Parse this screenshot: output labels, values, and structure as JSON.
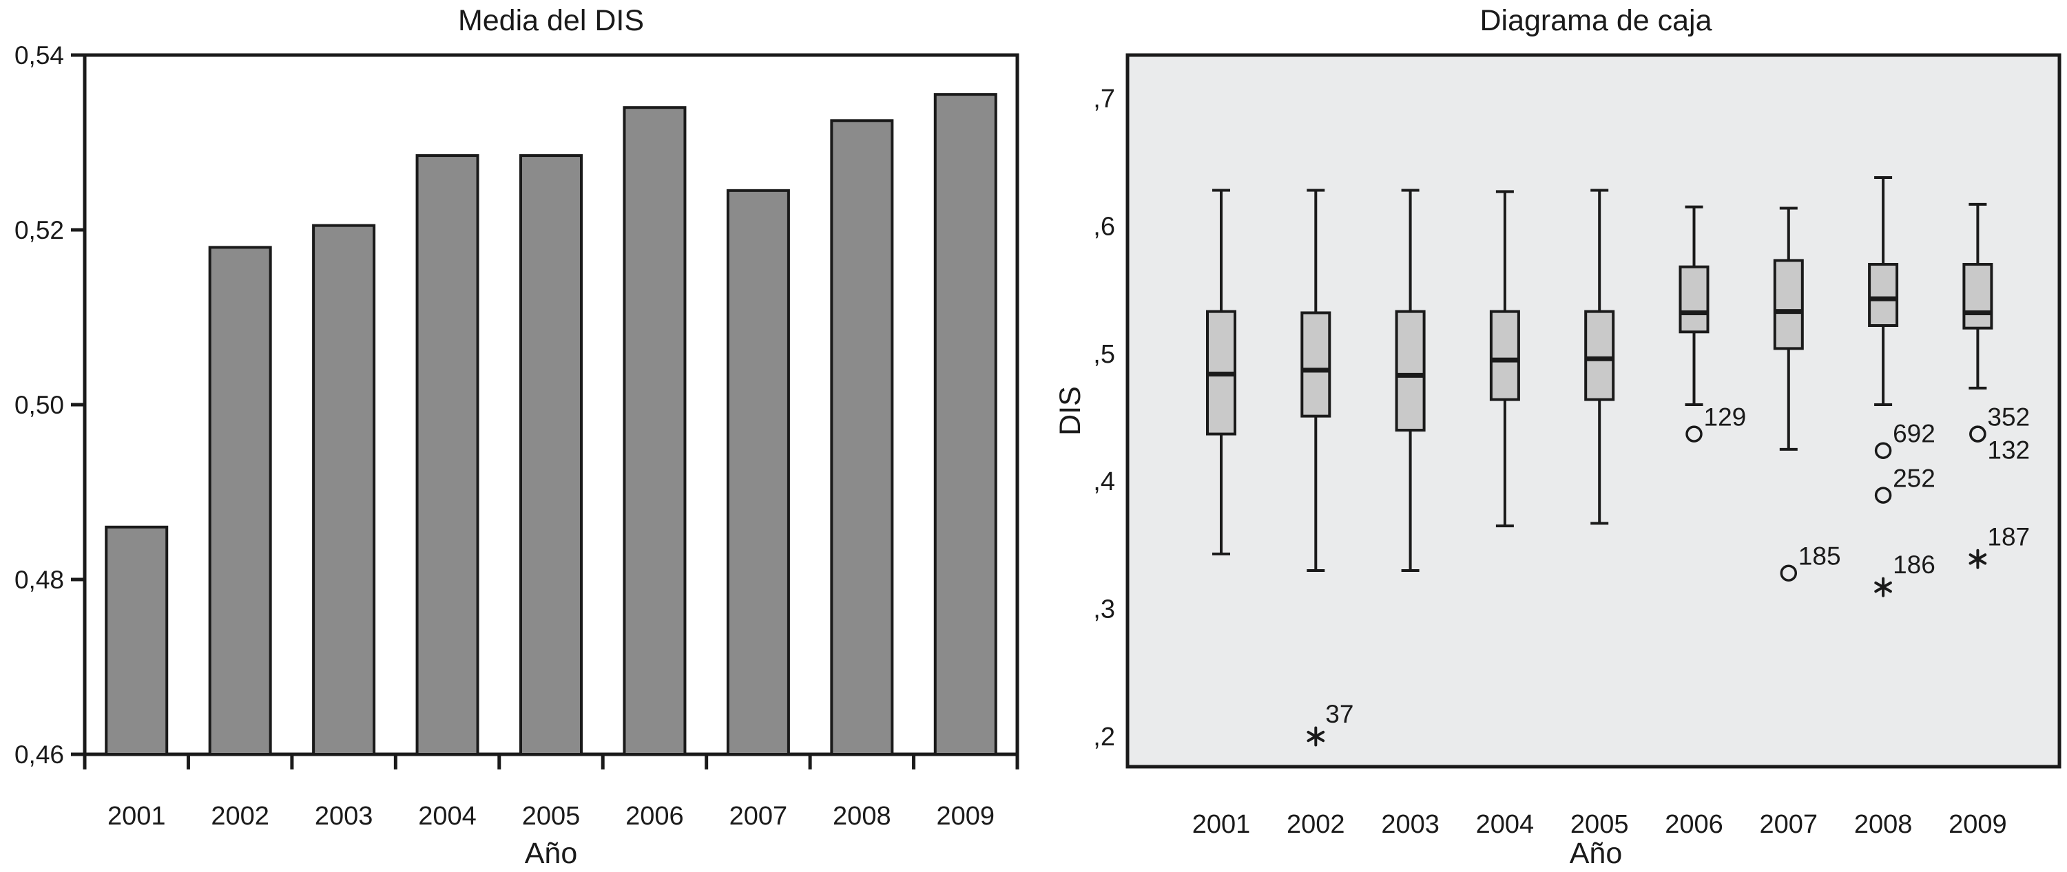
{
  "figure": {
    "background": "#ffffff",
    "ink_color": "#1a1a1a"
  },
  "chart_data": [
    {
      "type": "bar",
      "title": "Media del DIS",
      "xlabel": "Año",
      "ylabel": "",
      "categories": [
        "2001",
        "2002",
        "2003",
        "2004",
        "2005",
        "2006",
        "2007",
        "2008",
        "2009"
      ],
      "values": [
        0.486,
        0.518,
        0.5205,
        0.5285,
        0.5285,
        0.534,
        0.5245,
        0.5325,
        0.5355
      ],
      "ylim": [
        0.46,
        0.54
      ],
      "y_ticks": [
        0.54,
        0.52,
        0.5,
        0.48,
        0.46
      ],
      "y_tick_labels": [
        "0,54",
        "0,52",
        "0,50",
        "0,48",
        "0,46"
      ],
      "grid": false,
      "legend": null,
      "bar_color": "#8b8b8b",
      "bar_edge_color": "#1a1a1a",
      "plot_bg": "#ffffff"
    },
    {
      "type": "boxplot",
      "title": "Diagrama de caja",
      "xlabel": "Año",
      "ylabel": "DIS",
      "categories": [
        "2001",
        "2002",
        "2003",
        "2004",
        "2005",
        "2006",
        "2007",
        "2008",
        "2009"
      ],
      "ylim": [
        0.176,
        0.734
      ],
      "y_ticks": [
        0.7,
        0.6,
        0.5,
        0.4,
        0.3,
        0.2
      ],
      "y_tick_labels": [
        ",7",
        ",6",
        ",5",
        ",4",
        ",3",
        ",2"
      ],
      "grid": false,
      "legend": null,
      "plot_bg": "#eaebec",
      "box_fill": "#c9c9c9",
      "box_edge_color": "#1a1a1a",
      "series": [
        {
          "category": "2001",
          "whisker_low": 0.343,
          "q1": 0.437,
          "median": 0.484,
          "q3": 0.533,
          "whisker_high": 0.628,
          "outliers": []
        },
        {
          "category": "2002",
          "whisker_low": 0.33,
          "q1": 0.451,
          "median": 0.487,
          "q3": 0.532,
          "whisker_high": 0.628,
          "outliers": [
            {
              "label": "37",
              "value": 0.2,
              "marker": "asterisk",
              "label_pos": "above"
            }
          ]
        },
        {
          "category": "2003",
          "whisker_low": 0.33,
          "q1": 0.44,
          "median": 0.483,
          "q3": 0.533,
          "whisker_high": 0.628,
          "outliers": []
        },
        {
          "category": "2004",
          "whisker_low": 0.365,
          "q1": 0.464,
          "median": 0.495,
          "q3": 0.533,
          "whisker_high": 0.627,
          "outliers": []
        },
        {
          "category": "2005",
          "whisker_low": 0.367,
          "q1": 0.464,
          "median": 0.496,
          "q3": 0.533,
          "whisker_high": 0.628,
          "outliers": []
        },
        {
          "category": "2006",
          "whisker_low": 0.46,
          "q1": 0.517,
          "median": 0.532,
          "q3": 0.568,
          "whisker_high": 0.615,
          "outliers": [
            {
              "label": "129",
              "value": 0.437,
              "marker": "circle",
              "label_pos": "above"
            }
          ]
        },
        {
          "category": "2007",
          "whisker_low": 0.425,
          "q1": 0.504,
          "median": 0.533,
          "q3": 0.573,
          "whisker_high": 0.614,
          "outliers": [
            {
              "label": "185",
              "value": 0.328,
              "marker": "circle",
              "label_pos": "above"
            }
          ]
        },
        {
          "category": "2008",
          "whisker_low": 0.46,
          "q1": 0.522,
          "median": 0.543,
          "q3": 0.57,
          "whisker_high": 0.638,
          "outliers": [
            {
              "label": "692",
              "value": 0.424,
              "marker": "circle",
              "label_pos": "above"
            },
            {
              "label": "252",
              "value": 0.389,
              "marker": "circle",
              "label_pos": "above"
            },
            {
              "label": "186",
              "value": 0.317,
              "marker": "asterisk",
              "label_pos": "above"
            }
          ]
        },
        {
          "category": "2009",
          "whisker_low": 0.473,
          "q1": 0.52,
          "median": 0.532,
          "q3": 0.57,
          "whisker_high": 0.617,
          "outliers": [
            {
              "label": "352",
              "value": 0.437,
              "marker": "circle",
              "label_pos": "above"
            },
            {
              "label": "132",
              "value": 0.437,
              "marker": "circle",
              "label_pos": "below"
            },
            {
              "label": "187",
              "value": 0.339,
              "marker": "asterisk",
              "label_pos": "above"
            }
          ]
        }
      ]
    }
  ]
}
